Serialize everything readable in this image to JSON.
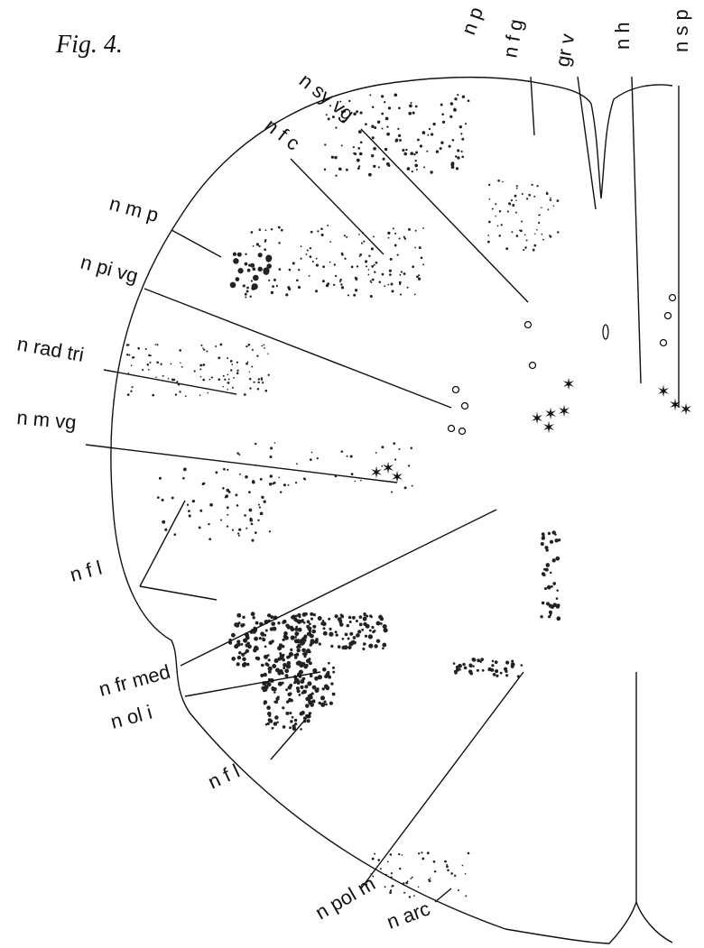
{
  "header": {
    "title": "Fig. 4."
  },
  "labels": [
    "n p",
    "n f g",
    "gr v",
    "n h",
    "n s p",
    "n sy vg",
    "n f c",
    "n m p",
    "n pi vg",
    "n rad tri",
    "n m vg",
    "n f l",
    "n fr med",
    "n ol i",
    "n f l",
    "n pol m",
    "n arc"
  ]
}
